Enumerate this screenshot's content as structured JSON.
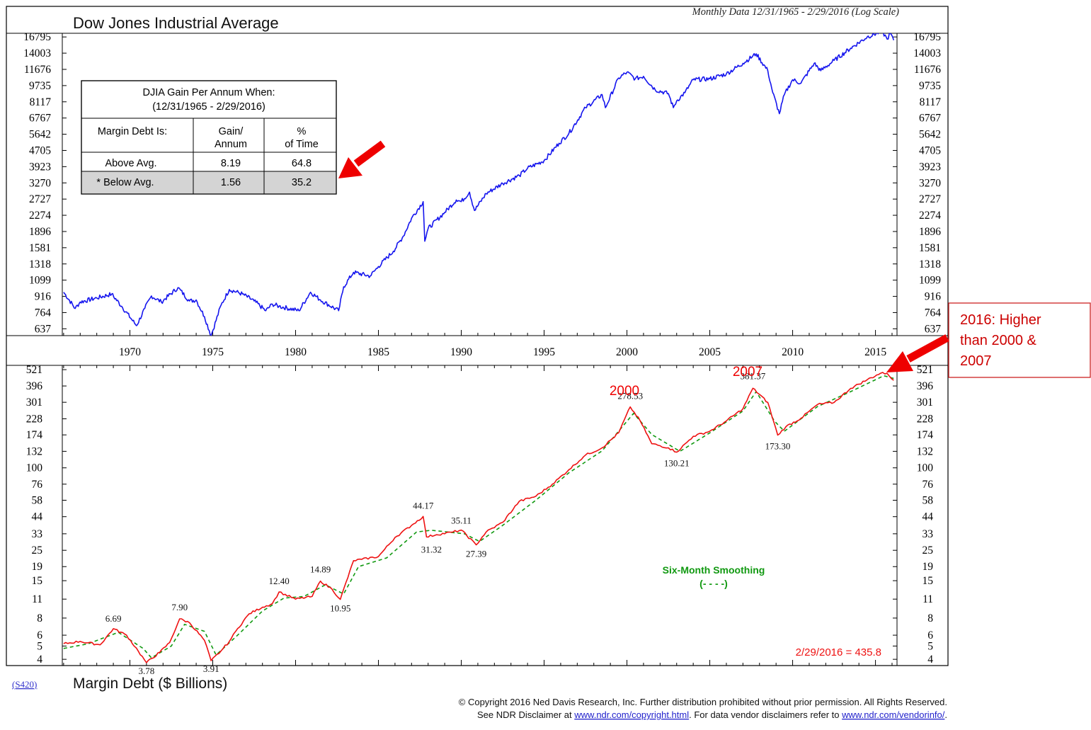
{
  "header": {
    "title": "Dow Jones Industrial Average",
    "subtitle": "Monthly Data 12/31/1965 - 2/29/2016 (Log Scale)"
  },
  "table": {
    "title_line1": "DJIA Gain Per Annum When:",
    "title_line2": "(12/31/1965 - 2/29/2016)",
    "col1_header": "Margin Debt Is:",
    "col2_header_line1": "Gain/",
    "col2_header_line2": "Annum",
    "col3_header_line1": "%",
    "col3_header_line2": "of Time",
    "rows": [
      {
        "label": "Above Avg.",
        "gain": "8.19",
        "pct": "64.8"
      },
      {
        "label": "* Below Avg.",
        "gain": "1.56",
        "pct": "35.2"
      }
    ]
  },
  "callout": {
    "line1": "2016: Higher",
    "line2": "than 2000 &",
    "line3": "2007"
  },
  "labels": {
    "label_2000": "2000",
    "label_2007": "2007",
    "smoothing_line1": "Six-Month Smoothing",
    "smoothing_line2": "(- - - -)",
    "latest": "2/29/2016 = 435.8",
    "bottom_title": "Margin Debt ($ Billions)",
    "series_code": "(S420)"
  },
  "footer": {
    "line1": "© Copyright 2016 Ned Davis Research, Inc.  Further distribution prohibited without prior permission.  All Rights Reserved.",
    "line2_pre": "See NDR Disclaimer at ",
    "line2_link1": "www.ndr.com/copyright.html",
    "line2_mid": ". For data vendor disclaimers refer to ",
    "line2_link2": "www.ndr.com/vendorinfo/",
    "line2_post": "."
  },
  "colors": {
    "djia": "#1515ee",
    "margin_debt": "#ee1111",
    "smoothing": "#119911",
    "annotation": "#ee0000",
    "table_shade": "#d4d4d4"
  },
  "chart_data": [
    {
      "type": "line",
      "scale": "log",
      "yticks": [
        637,
        764,
        916,
        1099,
        1318,
        1581,
        1896,
        2274,
        2727,
        3270,
        3923,
        4705,
        5642,
        6767,
        8117,
        9735,
        11676,
        14003,
        16795
      ],
      "xticks": [
        1970,
        1975,
        1980,
        1985,
        1990,
        1995,
        2000,
        2005,
        2010,
        2015
      ],
      "xlim": [
        1965.92,
        2016.3
      ],
      "ylim": [
        590,
        17500
      ],
      "series": [
        {
          "x": [
            1966.0,
            1966.7,
            1967.0,
            1968.0,
            1968.9,
            1969.5,
            1970.4,
            1970.9,
            1971.3,
            1971.9,
            1972.9,
            1973.6,
            1974.0,
            1974.5,
            1974.9,
            1975.5,
            1976.0,
            1976.8,
            1977.5,
            1978.2,
            1978.6,
            1979.0,
            1980.2,
            1980.9,
            1981.5,
            1982.6,
            1982.9,
            1983.5,
            1984.5,
            1985.0,
            1985.9,
            1986.5,
            1987.0,
            1987.7,
            1987.8,
            1988.0,
            1989.0,
            1989.7,
            1990.0,
            1990.5,
            1990.8,
            1991.5,
            1992.5,
            1993.5,
            1994.0,
            1995.0,
            1995.9,
            1996.5,
            1997.5,
            1998.5,
            1998.7,
            1999.5,
            2000.0,
            2000.5,
            2001.0,
            2001.7,
            2002.5,
            2002.8,
            2003.0,
            2003.5,
            2004.0,
            2005.0,
            2006.0,
            2007.0,
            2007.8,
            2008.5,
            2008.8,
            2009.2,
            2009.5,
            2010.0,
            2010.5,
            2011.3,
            2011.7,
            2012.5,
            2013.5,
            2014.5,
            2015.4,
            2015.7,
            2015.9,
            2016.1
          ],
          "y": [
            960,
            800,
            860,
            900,
            940,
            820,
            660,
            800,
            920,
            860,
            1010,
            870,
            880,
            730,
            590,
            830,
            990,
            940,
            870,
            780,
            840,
            820,
            780,
            960,
            880,
            780,
            1020,
            1200,
            1150,
            1280,
            1520,
            1800,
            2200,
            2650,
            1700,
            1960,
            2350,
            2700,
            2650,
            2950,
            2400,
            2900,
            3250,
            3550,
            3850,
            4200,
            5100,
            5700,
            7600,
            8800,
            7600,
            10600,
            11300,
            10500,
            10800,
            9300,
            8900,
            7600,
            8200,
            9000,
            10400,
            10500,
            11100,
            12500,
            13900,
            11500,
            9000,
            7100,
            8800,
            10400,
            10000,
            12500,
            11500,
            12900,
            14800,
            16800,
            17900,
            16400,
            17500,
            16200
          ]
        }
      ]
    },
    {
      "type": "line",
      "scale": "log",
      "title": "Margin Debt ($ Billions)",
      "yticks": [
        4,
        5,
        6,
        8,
        11,
        15,
        19,
        25,
        33,
        44,
        58,
        76,
        100,
        132,
        174,
        228,
        301,
        396,
        521
      ],
      "xlim": [
        1965.92,
        2016.3
      ],
      "ylim": [
        3.6,
        560
      ],
      "series": [
        {
          "name": "Margin Debt",
          "x": [
            1966.0,
            1967.0,
            1968.2,
            1969.0,
            1969.8,
            1970.5,
            1971.0,
            1971.8,
            1972.4,
            1973.0,
            1973.6,
            1974.5,
            1974.9,
            1975.5,
            1976.0,
            1976.5,
            1977.2,
            1978.0,
            1978.6,
            1979.0,
            1980.0,
            1981.0,
            1981.5,
            1982.2,
            1982.7,
            1983.5,
            1984.0,
            1985.0,
            1986.0,
            1987.0,
            1987.7,
            1987.9,
            1988.5,
            1989.5,
            1990.0,
            1990.9,
            1991.5,
            1992.5,
            1993.5,
            1994.5,
            1995.5,
            1996.5,
            1997.5,
            1998.5,
            1999.5,
            2000.2,
            2000.8,
            2001.5,
            2002.5,
            2003.0,
            2004.0,
            2005.0,
            2006.0,
            2007.0,
            2007.6,
            2008.5,
            2009.1,
            2009.6,
            2010.5,
            2011.5,
            2012.5,
            2013.5,
            2014.5,
            2015.3,
            2015.7,
            2016.1
          ],
          "y": [
            5.2,
            5.4,
            5.1,
            6.69,
            6.0,
            4.6,
            3.78,
            4.5,
            5.3,
            7.9,
            7.4,
            5.5,
            3.91,
            4.6,
            5.4,
            6.7,
            8.6,
            9.6,
            10.2,
            12.4,
            11.0,
            11.5,
            14.89,
            13.0,
            10.95,
            21.0,
            21.5,
            22.5,
            31.0,
            38.0,
            44.17,
            31.32,
            32.5,
            34.0,
            35.11,
            27.39,
            34.0,
            40.0,
            57.0,
            62.0,
            76.0,
            97.0,
            124.0,
            140.0,
            180.0,
            278.53,
            220.0,
            150.0,
            140.0,
            130.21,
            170.0,
            185.0,
            220.0,
            270.0,
            381.37,
            300.0,
            173.3,
            200.0,
            230.0,
            290.0,
            300.0,
            380.0,
            440.0,
            490.0,
            490.0,
            435.8
          ]
        },
        {
          "name": "Six-Month Smoothing",
          "x": [
            1966.0,
            1967.5,
            1969.3,
            1970.8,
            1971.3,
            1972.5,
            1973.3,
            1974.5,
            1975.2,
            1976.5,
            1978.0,
            1979.3,
            1980.5,
            1981.8,
            1982.9,
            1983.8,
            1985.5,
            1987.3,
            1988.2,
            1990.2,
            1991.1,
            1992.5,
            1994.5,
            1996.5,
            1998.5,
            2000.4,
            2001.5,
            2003.2,
            2005.0,
            2007.0,
            2007.8,
            2008.9,
            2009.5,
            2011.5,
            2013.5,
            2015.5,
            2016.1
          ],
          "y": [
            4.8,
            5.2,
            6.3,
            4.8,
            4.1,
            5.0,
            7.2,
            6.4,
            4.3,
            6.0,
            9.0,
            11.2,
            11.5,
            14.0,
            12.0,
            19.0,
            22.0,
            34.0,
            35.0,
            33.0,
            29.0,
            38.0,
            58.0,
            92.0,
            133.0,
            250.0,
            175.0,
            132.0,
            180.0,
            260.0,
            360.0,
            220.0,
            185.0,
            280.0,
            360.0,
            470.0,
            450.0
          ]
        }
      ],
      "annotations": [
        "6.69",
        "3.78",
        "7.90",
        "3.91",
        "12.40",
        "14.89",
        "10.95",
        "44.17",
        "31.32",
        "35.11",
        "27.39",
        "278.53",
        "130.21",
        "381.37",
        "173.30"
      ]
    }
  ]
}
